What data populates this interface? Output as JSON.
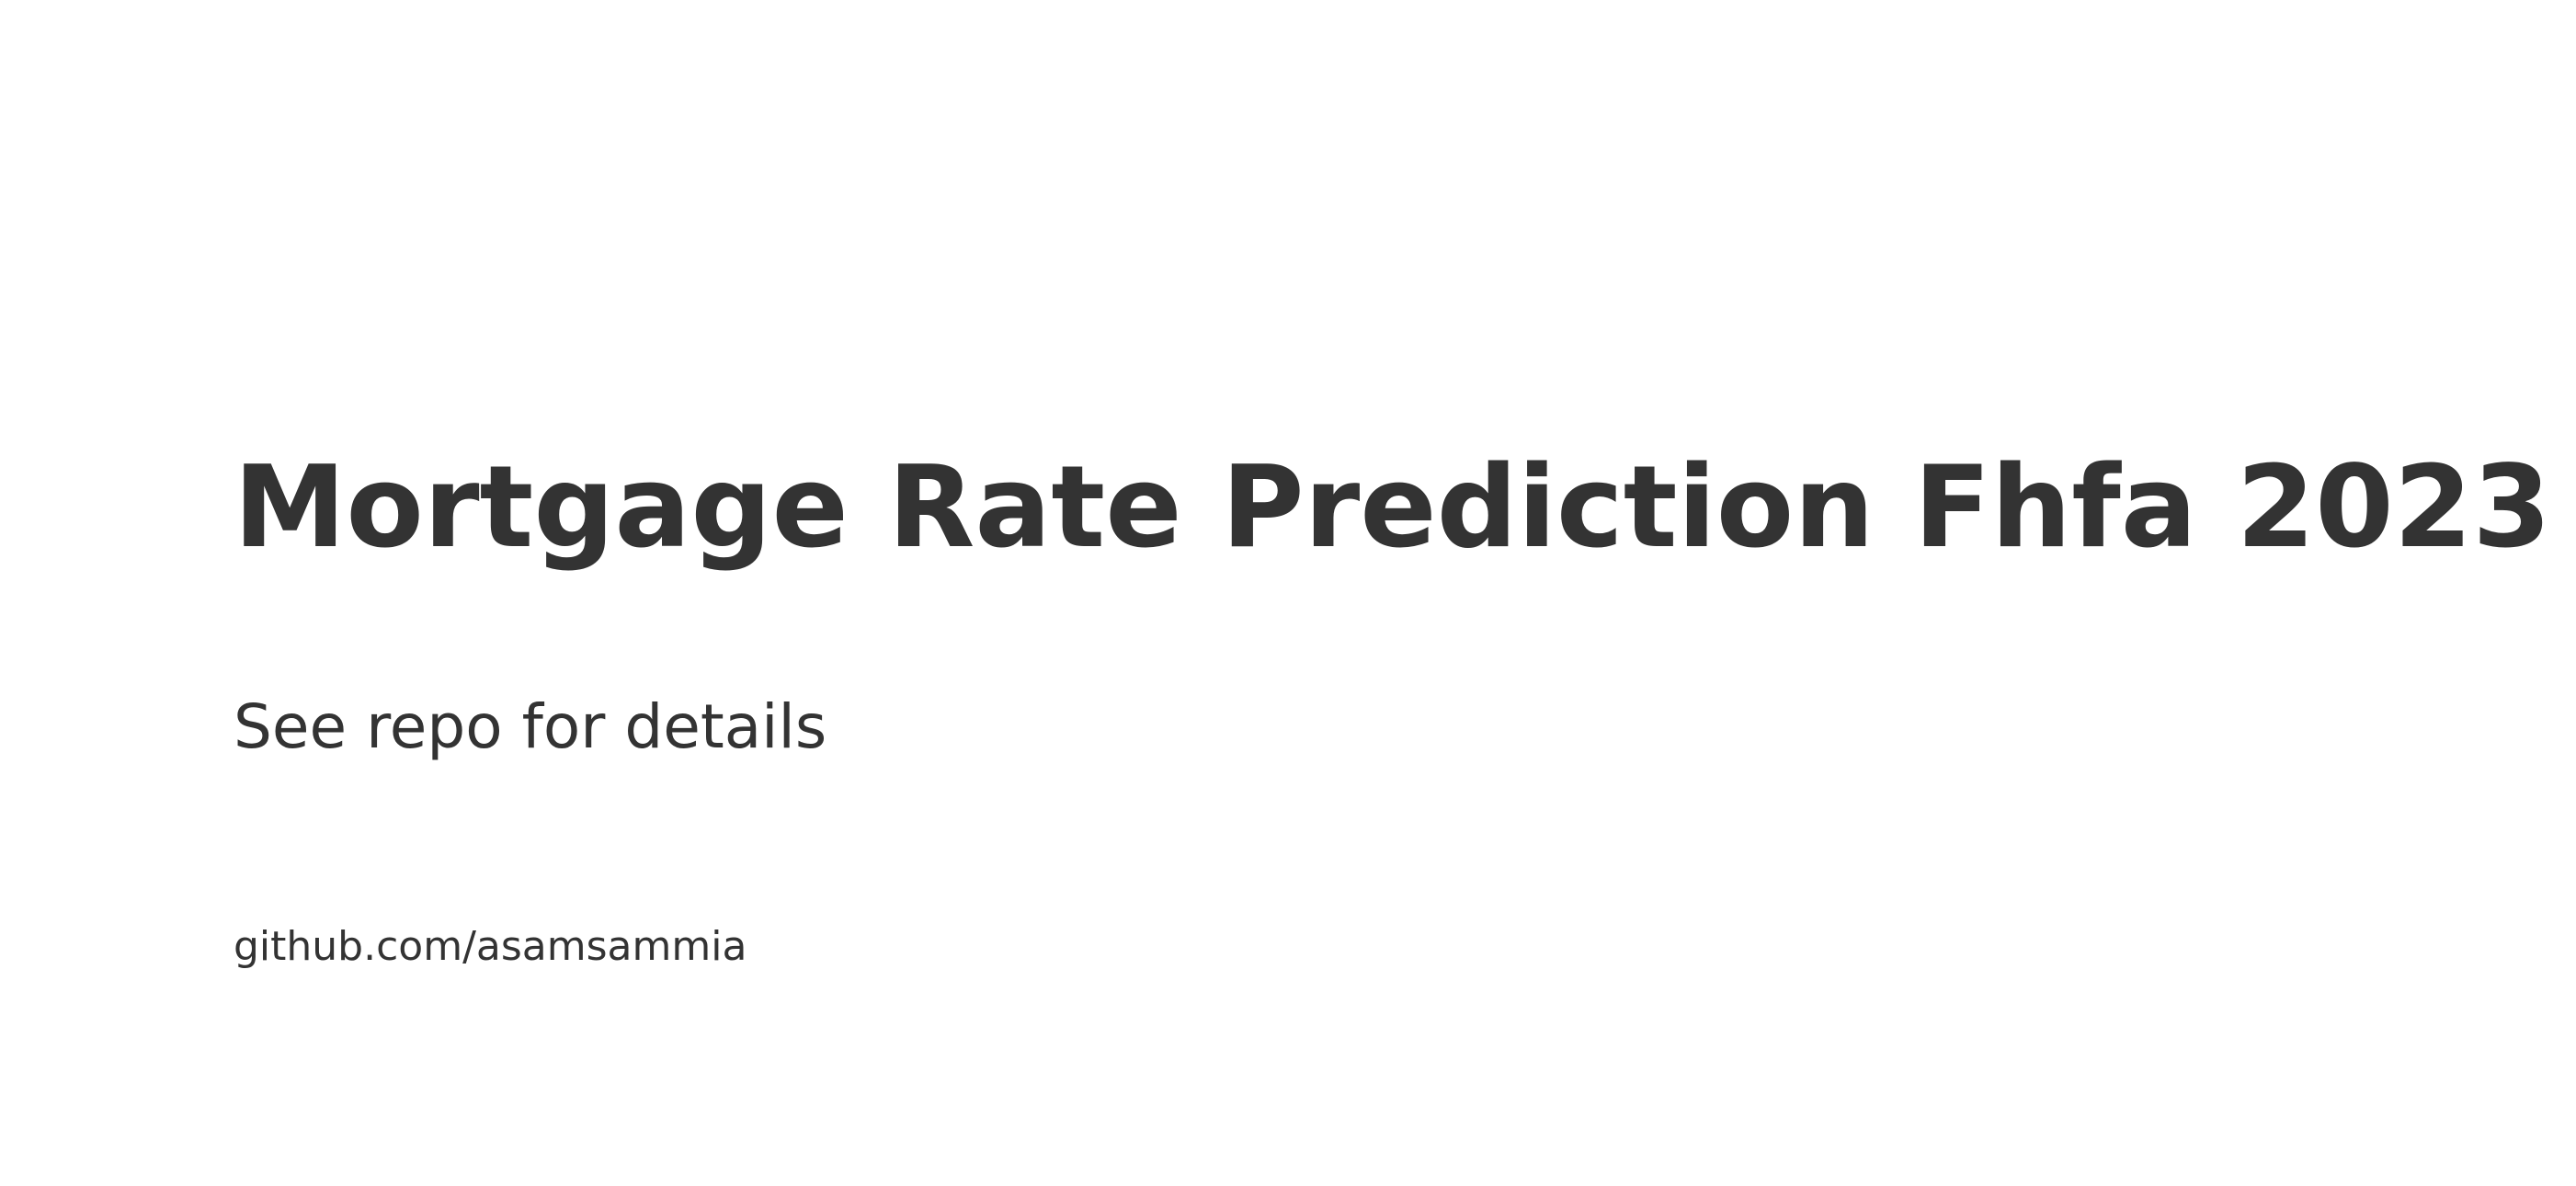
{
  "card": {
    "title": "Mortgage Rate Prediction Fhfa 2023",
    "subtitle": "See repo for details",
    "source": "github.com/asamsammia"
  },
  "colors": {
    "background": "#ffffff",
    "text": "#333333"
  }
}
